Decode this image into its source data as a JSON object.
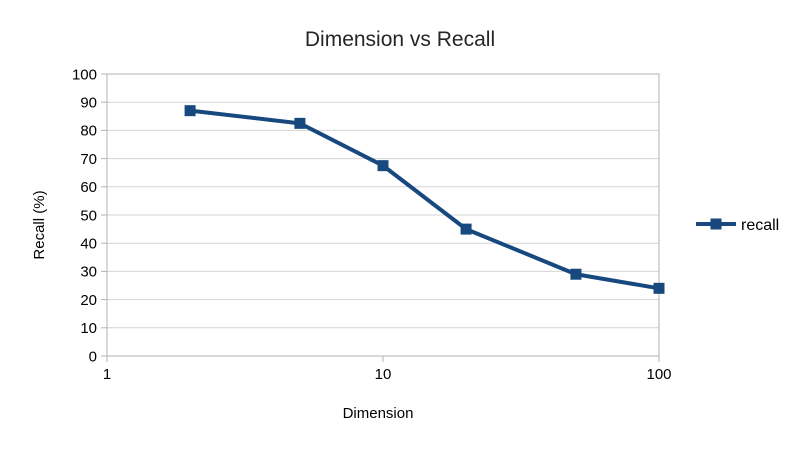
{
  "chart_data": {
    "type": "line",
    "title": "Dimension vs Recall",
    "xlabel": "Dimension",
    "ylabel": "Recall (%)",
    "x_scale": "log",
    "x": [
      2,
      5,
      10,
      20,
      50,
      100
    ],
    "series": [
      {
        "name": "recall",
        "values": [
          87,
          82.5,
          67.5,
          45,
          29,
          24
        ]
      }
    ],
    "x_ticks": [
      1,
      10,
      100
    ],
    "y_ticks": [
      0,
      10,
      20,
      30,
      40,
      50,
      60,
      70,
      80,
      90,
      100
    ],
    "xlim": [
      1,
      100
    ],
    "ylim": [
      0,
      100
    ],
    "grid": "horizontal",
    "legend_position": "right",
    "marker": "square"
  },
  "colors": {
    "series": "#17497f",
    "grid": "#d4d4d4",
    "axis": "#b3b3b3",
    "text": "#000000",
    "background": "#ffffff"
  }
}
